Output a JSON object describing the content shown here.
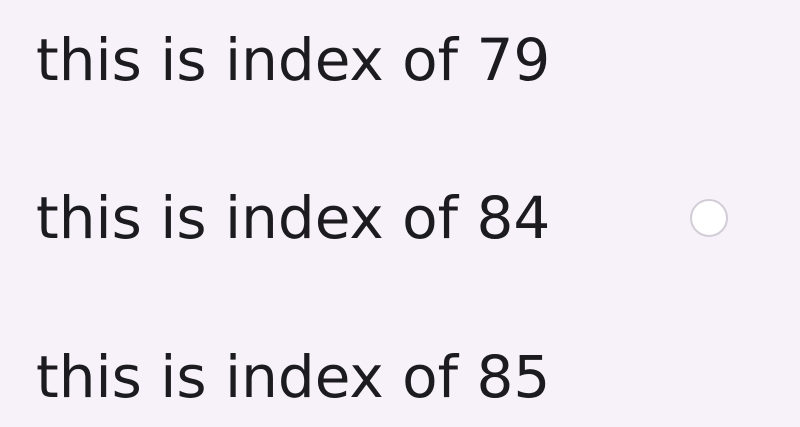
{
  "list": {
    "items": [
      {
        "label": "this is index of 79",
        "has_radio": false
      },
      {
        "label": "this is index of 84",
        "has_radio": true,
        "radio_selected": false
      },
      {
        "label": "this is index of 85",
        "has_radio": false
      }
    ]
  },
  "colors": {
    "background": "#f7f1f9",
    "text": "#1c1b1f",
    "radio_border": "#d2ccd6"
  }
}
